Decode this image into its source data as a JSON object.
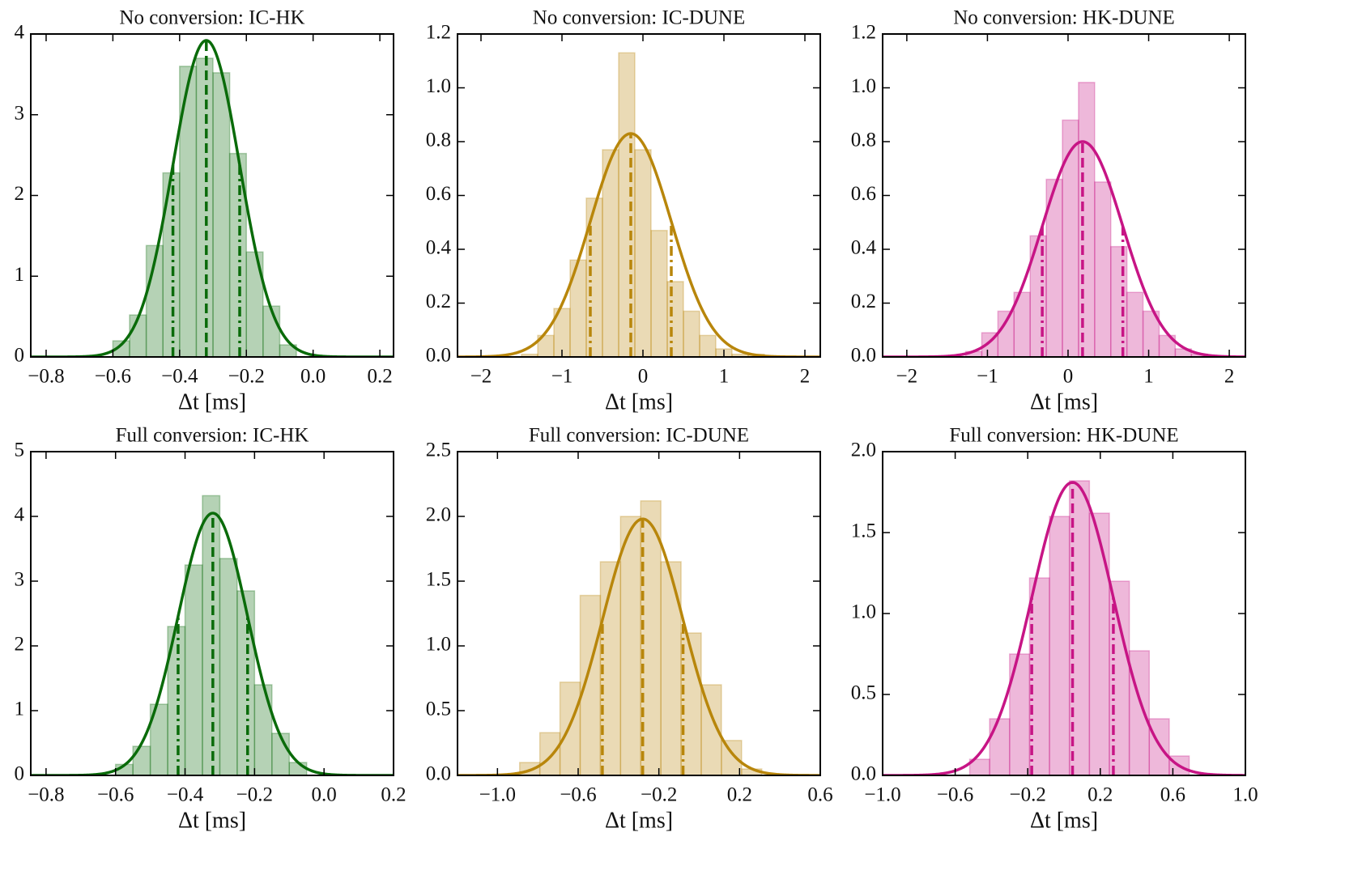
{
  "chart_data": [
    {
      "type": "histogram",
      "title": "No conversion: IC-HK",
      "x_label": "Δt [ms]",
      "color": "#0a6b0a",
      "bins": [
        -0.6,
        -0.55,
        -0.5,
        -0.45,
        -0.4,
        -0.35,
        -0.3,
        -0.25,
        -0.2,
        -0.15,
        -0.1,
        -0.05
      ],
      "counts": [
        0.2,
        0.52,
        1.38,
        2.28,
        3.6,
        3.7,
        3.52,
        2.52,
        1.3,
        0.63,
        0.15
      ],
      "fit": {
        "mean": -0.32,
        "std": 0.1,
        "peak": 3.92
      },
      "xlim": [
        -0.846,
        0.241
      ],
      "ylim": [
        0,
        4
      ],
      "xticks": [
        {
          "value": -0.8,
          "label": "−0.8"
        },
        {
          "value": -0.6,
          "label": "−0.6"
        },
        {
          "value": -0.4,
          "label": "−0.4"
        },
        {
          "value": -0.2,
          "label": "−0.2"
        },
        {
          "value": 0,
          "label": "0.0"
        },
        0.2
      ],
      "yticks": [
        0,
        1,
        2,
        3,
        4
      ]
    },
    {
      "type": "histogram",
      "title": "No conversion: IC-DUNE",
      "x_label": "Δt [ms]",
      "color": "#b8860b",
      "bins": [
        -1.5,
        -1.3,
        -1.1,
        -0.9,
        -0.7,
        -0.5,
        -0.3,
        -0.1,
        0.1,
        0.3,
        0.5,
        0.7,
        0.9,
        1.1,
        1.3,
        1.5
      ],
      "counts": [
        0.01,
        0.08,
        0.18,
        0.36,
        0.59,
        0.77,
        1.13,
        0.77,
        0.47,
        0.28,
        0.17,
        0.08,
        0.03,
        0.01,
        0.01
      ],
      "fit": {
        "mean": -0.15,
        "std": 0.5,
        "peak": 0.83
      },
      "xlim": [
        -2.29,
        2.19
      ],
      "ylim": [
        0,
        1.2
      ],
      "xticks": [
        {
          "value": -2,
          "label": "−2"
        },
        {
          "value": -1,
          "label": "−1"
        },
        0,
        1,
        2
      ],
      "yticks": [
        {
          "value": 0,
          "label": "0.0"
        },
        0.2,
        0.4,
        0.6,
        0.8,
        {
          "value": 1,
          "label": "1.0"
        },
        1.2
      ]
    },
    {
      "type": "histogram",
      "title": "No conversion: HK-DUNE",
      "x_label": "Δt [ms]",
      "color": "#c71585",
      "bins": [
        -1.27,
        -1.07,
        -0.87,
        -0.67,
        -0.47,
        -0.27,
        -0.07,
        0.13,
        0.33,
        0.53,
        0.73,
        0.93,
        1.13,
        1.33,
        1.53,
        1.73
      ],
      "counts": [
        0.02,
        0.09,
        0.17,
        0.24,
        0.45,
        0.66,
        0.88,
        1.02,
        0.65,
        0.41,
        0.24,
        0.17,
        0.08,
        0.03,
        0.01
      ],
      "fit": {
        "mean": 0.18,
        "std": 0.5,
        "peak": 0.8
      },
      "xlim": [
        -2.3,
        2.2
      ],
      "ylim": [
        0,
        1.2
      ],
      "xticks": [
        {
          "value": -2,
          "label": "−2"
        },
        {
          "value": -1,
          "label": "−1"
        },
        0,
        1,
        2
      ],
      "yticks": [
        {
          "value": 0,
          "label": "0.0"
        },
        0.2,
        0.4,
        0.6,
        0.8,
        {
          "value": 1,
          "label": "1.0"
        },
        1.2
      ]
    },
    {
      "type": "histogram",
      "title": "Full conversion: IC-HK",
      "x_label": "Δt [ms]",
      "color": "#0a6b0a",
      "bins": [
        -0.6,
        -0.55,
        -0.5,
        -0.45,
        -0.4,
        -0.35,
        -0.3,
        -0.25,
        -0.2,
        -0.15,
        -0.1,
        -0.05
      ],
      "counts": [
        0.17,
        0.45,
        1.1,
        2.3,
        3.25,
        4.32,
        3.35,
        2.85,
        1.4,
        0.65,
        0.2
      ],
      "fit": {
        "mean": -0.32,
        "std": 0.1,
        "peak": 4.05
      },
      "xlim": [
        -0.844,
        0.2
      ],
      "ylim": [
        0,
        5
      ],
      "xticks": [
        {
          "value": -0.8,
          "label": "−0.8"
        },
        {
          "value": -0.6,
          "label": "−0.6"
        },
        {
          "value": -0.4,
          "label": "−0.4"
        },
        {
          "value": -0.2,
          "label": "−0.2"
        },
        {
          "value": 0,
          "label": "0.0"
        },
        0.2
      ],
      "yticks": [
        0,
        1,
        2,
        3,
        4,
        5
      ]
    },
    {
      "type": "histogram",
      "title": "Full conversion: IC-DUNE",
      "x_label": "Δt [ms]",
      "color": "#b8860b",
      "bins": [
        -0.89,
        -0.79,
        -0.69,
        -0.59,
        -0.49,
        -0.39,
        -0.29,
        -0.19,
        -0.09,
        0.01,
        0.11,
        0.21,
        0.31
      ],
      "counts": [
        0.1,
        0.33,
        0.72,
        1.39,
        1.65,
        2.0,
        2.12,
        1.65,
        1.1,
        0.7,
        0.27,
        0.05
      ],
      "fit": {
        "mean": -0.28,
        "std": 0.2,
        "peak": 1.98
      },
      "xlim": [
        -1.198,
        0.6
      ],
      "ylim": [
        0,
        2.5
      ],
      "xticks": [
        {
          "value": -1,
          "label": "−1.0"
        },
        {
          "value": -0.6,
          "label": "−0.6"
        },
        {
          "value": -0.2,
          "label": "−0.2"
        },
        0.2,
        0.6
      ],
      "yticks": [
        {
          "value": 0,
          "label": "0.0"
        },
        0.5,
        {
          "value": 1,
          "label": "1.0"
        },
        1.5,
        {
          "value": 2,
          "label": "2.0"
        },
        2.5
      ]
    },
    {
      "type": "histogram",
      "title": "Full conversion: HK-DUNE",
      "x_label": "Δt [ms]",
      "color": "#c71585",
      "bins": [
        -0.52,
        -0.41,
        -0.3,
        -0.19,
        -0.08,
        0.03,
        0.14,
        0.25,
        0.36,
        0.47,
        0.58,
        0.69
      ],
      "counts": [
        0.1,
        0.35,
        0.75,
        1.22,
        1.6,
        1.82,
        1.62,
        1.2,
        0.77,
        0.35,
        0.12
      ],
      "fit": {
        "mean": 0.047,
        "std": 0.225,
        "peak": 1.81
      },
      "xlim": [
        -1,
        1
      ],
      "ylim": [
        0,
        2
      ],
      "xticks": [
        {
          "value": -1,
          "label": "−1.0"
        },
        {
          "value": -0.6,
          "label": "−0.6"
        },
        {
          "value": -0.2,
          "label": "−0.2"
        },
        0.2,
        0.6,
        {
          "value": 1,
          "label": "1.0"
        }
      ],
      "yticks": [
        {
          "value": 0,
          "label": "0.0"
        },
        0.5,
        {
          "value": 1,
          "label": "1.0"
        },
        1.5,
        {
          "value": 2,
          "label": "2.0"
        }
      ]
    }
  ]
}
